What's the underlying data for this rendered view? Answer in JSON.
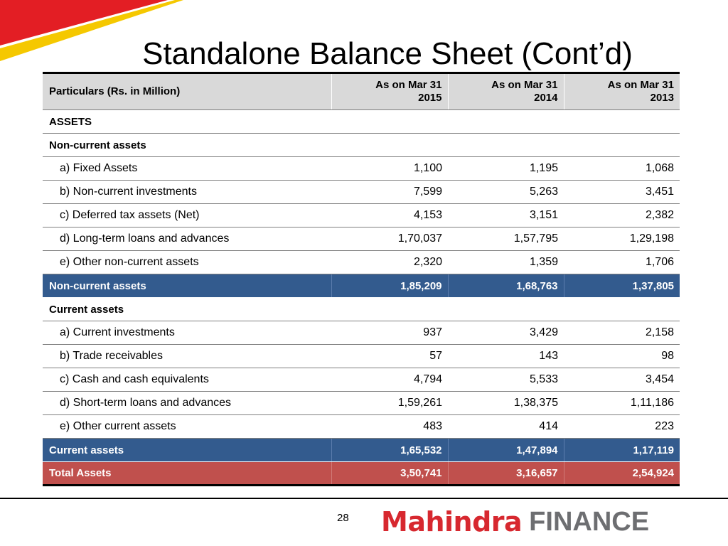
{
  "slide": {
    "title": "Standalone Balance Sheet (Cont’d)",
    "page_number": "28",
    "logo": {
      "brand": "Mahindra",
      "word": "FINANCE",
      "brand_color": "#d7282f",
      "word_color": "#6d6e71"
    }
  },
  "colors": {
    "header_bg": "#d9d9d9",
    "subtotal_bg": "#335b8e",
    "total_bg": "#c0504d",
    "stripe_red": "#e31e24",
    "stripe_yellow": "#f5c800"
  },
  "table": {
    "header": {
      "label": "Particulars (Rs. in Million)",
      "col1": [
        "As on Mar 31",
        "2015"
      ],
      "col2": [
        "As on Mar 31",
        "2014"
      ],
      "col3": [
        "As on Mar 31",
        "2013"
      ]
    },
    "rows": [
      {
        "type": "section",
        "label": "ASSETS"
      },
      {
        "type": "section",
        "label": "Non-current assets"
      },
      {
        "type": "item",
        "label": "a) Fixed Assets",
        "v1": "1,100",
        "v2": "1,195",
        "v3": "1,068"
      },
      {
        "type": "item",
        "label": "b) Non-current investments",
        "v1": "7,599",
        "v2": "5,263",
        "v3": "3,451"
      },
      {
        "type": "item",
        "label": "c) Deferred tax assets (Net)",
        "v1": "4,153",
        "v2": "3,151",
        "v3": "2,382"
      },
      {
        "type": "item",
        "label": "d) Long-term loans and advances",
        "v1": "1,70,037",
        "v2": "1,57,795",
        "v3": "1,29,198"
      },
      {
        "type": "item",
        "label": "e) Other non-current assets",
        "v1": "2,320",
        "v2": "1,359",
        "v3": "1,706"
      },
      {
        "type": "subtotal",
        "label": "Non-current assets",
        "v1": "1,85,209",
        "v2": "1,68,763",
        "v3": "1,37,805"
      },
      {
        "type": "section",
        "label": "Current assets"
      },
      {
        "type": "item",
        "label": "a) Current investments",
        "v1": "937",
        "v2": "3,429",
        "v3": "2,158"
      },
      {
        "type": "item",
        "label": "b) Trade receivables",
        "v1": "57",
        "v2": "143",
        "v3": "98"
      },
      {
        "type": "item",
        "label": "c) Cash and cash equivalents",
        "v1": "4,794",
        "v2": "5,533",
        "v3": "3,454"
      },
      {
        "type": "item",
        "label": "d) Short-term loans and advances",
        "v1": "1,59,261",
        "v2": "1,38,375",
        "v3": "1,11,186"
      },
      {
        "type": "item",
        "label": "e) Other current assets",
        "v1": "483",
        "v2": "414",
        "v3": "223"
      },
      {
        "type": "subtotal",
        "label": "Current assets",
        "v1": "1,65,532",
        "v2": "1,47,894",
        "v3": "1,17,119"
      },
      {
        "type": "total",
        "label": "Total Assets",
        "v1": "3,50,741",
        "v2": "3,16,657",
        "v3": "2,54,924"
      }
    ]
  }
}
